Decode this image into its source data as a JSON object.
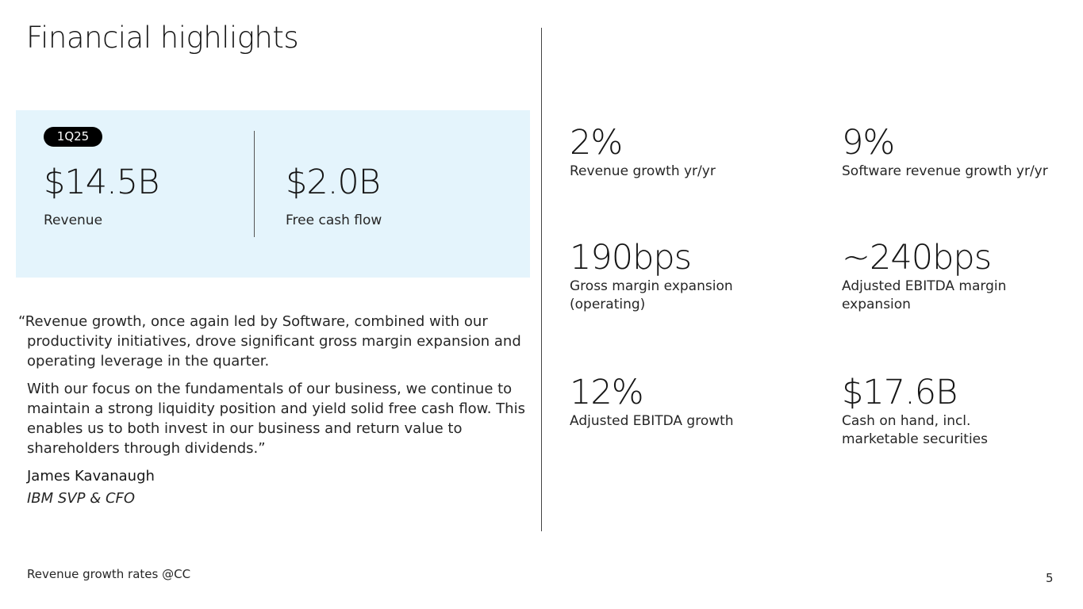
{
  "title": "Financial highlights",
  "highlight": {
    "badge": "1Q25",
    "revenue_value": "$14.5B",
    "revenue_label": "Revenue",
    "fcf_value": "$2.0B",
    "fcf_label": "Free cash flow"
  },
  "quote": {
    "p1": "“Revenue growth, once again led by Software, combined with our productivity initiatives, drove significant gross margin expansion and operating leverage in the quarter.",
    "p2": "With our focus on the fundamentals of our business, we continue to maintain a strong liquidity position and yield solid free cash flow. This enables us to both invest in our business and return value to shareholders through dividends.”",
    "author": "James Kavanaugh",
    "role": "IBM SVP & CFO"
  },
  "metrics": [
    {
      "value": "2%",
      "label": "Revenue growth yr/yr"
    },
    {
      "value": "9%",
      "label": "Software revenue growth yr/yr"
    },
    {
      "value": "190bps",
      "label": "Gross margin expansion (operating)"
    },
    {
      "value": "~240bps",
      "label": "Adjusted EBITDA margin expansion"
    },
    {
      "value": "12%",
      "label": "Adjusted EBITDA growth"
    },
    {
      "value": "$17.6B",
      "label": "Cash on hand, incl. marketable securities"
    }
  ],
  "footnote": "Revenue growth rates @CC",
  "page_number": "5"
}
